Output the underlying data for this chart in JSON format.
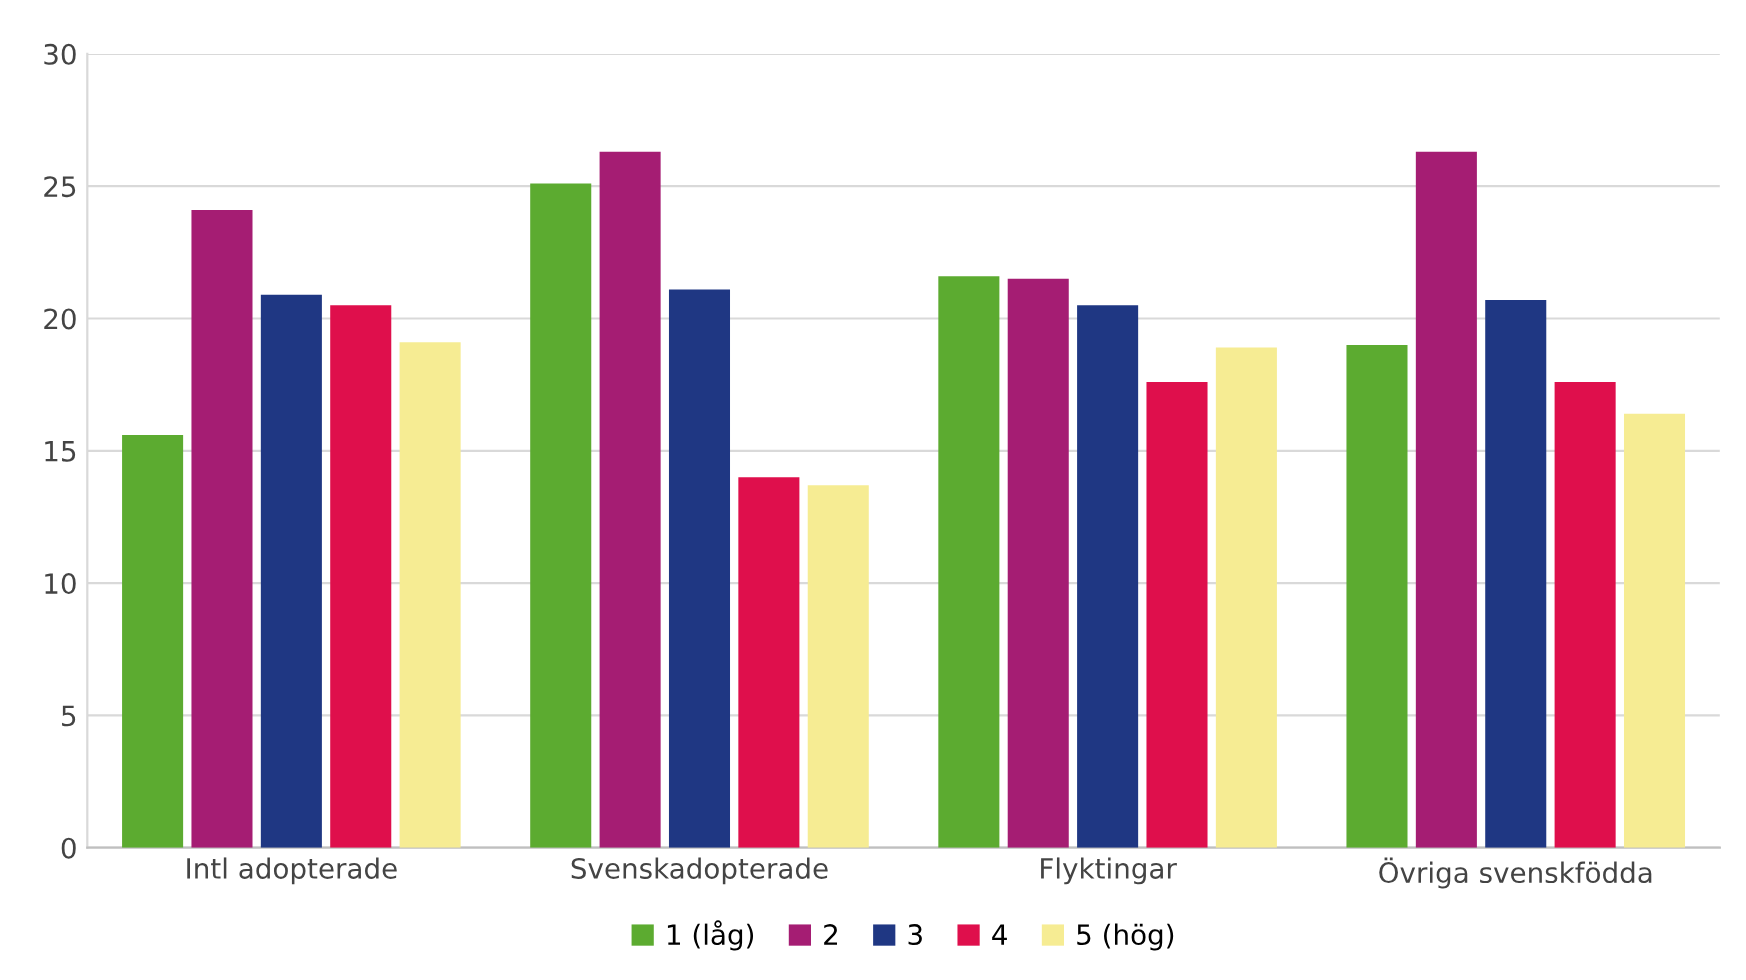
{
  "chart_data": {
    "type": "bar",
    "categories": [
      "Intl adopterade",
      "Svenskadopterade",
      "Flyktingar",
      "Övriga svenskfödda"
    ],
    "series": [
      {
        "name": "1 (låg)",
        "color": "#5cab30",
        "values": [
          15.6,
          25.1,
          21.6,
          19.0
        ]
      },
      {
        "name": "2",
        "color": "#a51d73",
        "values": [
          24.1,
          26.3,
          21.5,
          26.3
        ]
      },
      {
        "name": "3",
        "color": "#1f3783",
        "values": [
          20.9,
          21.1,
          20.5,
          20.7
        ]
      },
      {
        "name": "4",
        "color": "#df0f4c",
        "values": [
          20.5,
          14.0,
          17.6,
          17.6
        ]
      },
      {
        "name": "5 (hög)",
        "color": "#f6ec93",
        "values": [
          19.1,
          13.7,
          18.9,
          16.4
        ]
      }
    ],
    "ylim": [
      0,
      30
    ],
    "yticks": [
      0,
      5,
      10,
      15,
      20,
      25,
      30
    ],
    "grid": "y",
    "legend": "bottom"
  }
}
